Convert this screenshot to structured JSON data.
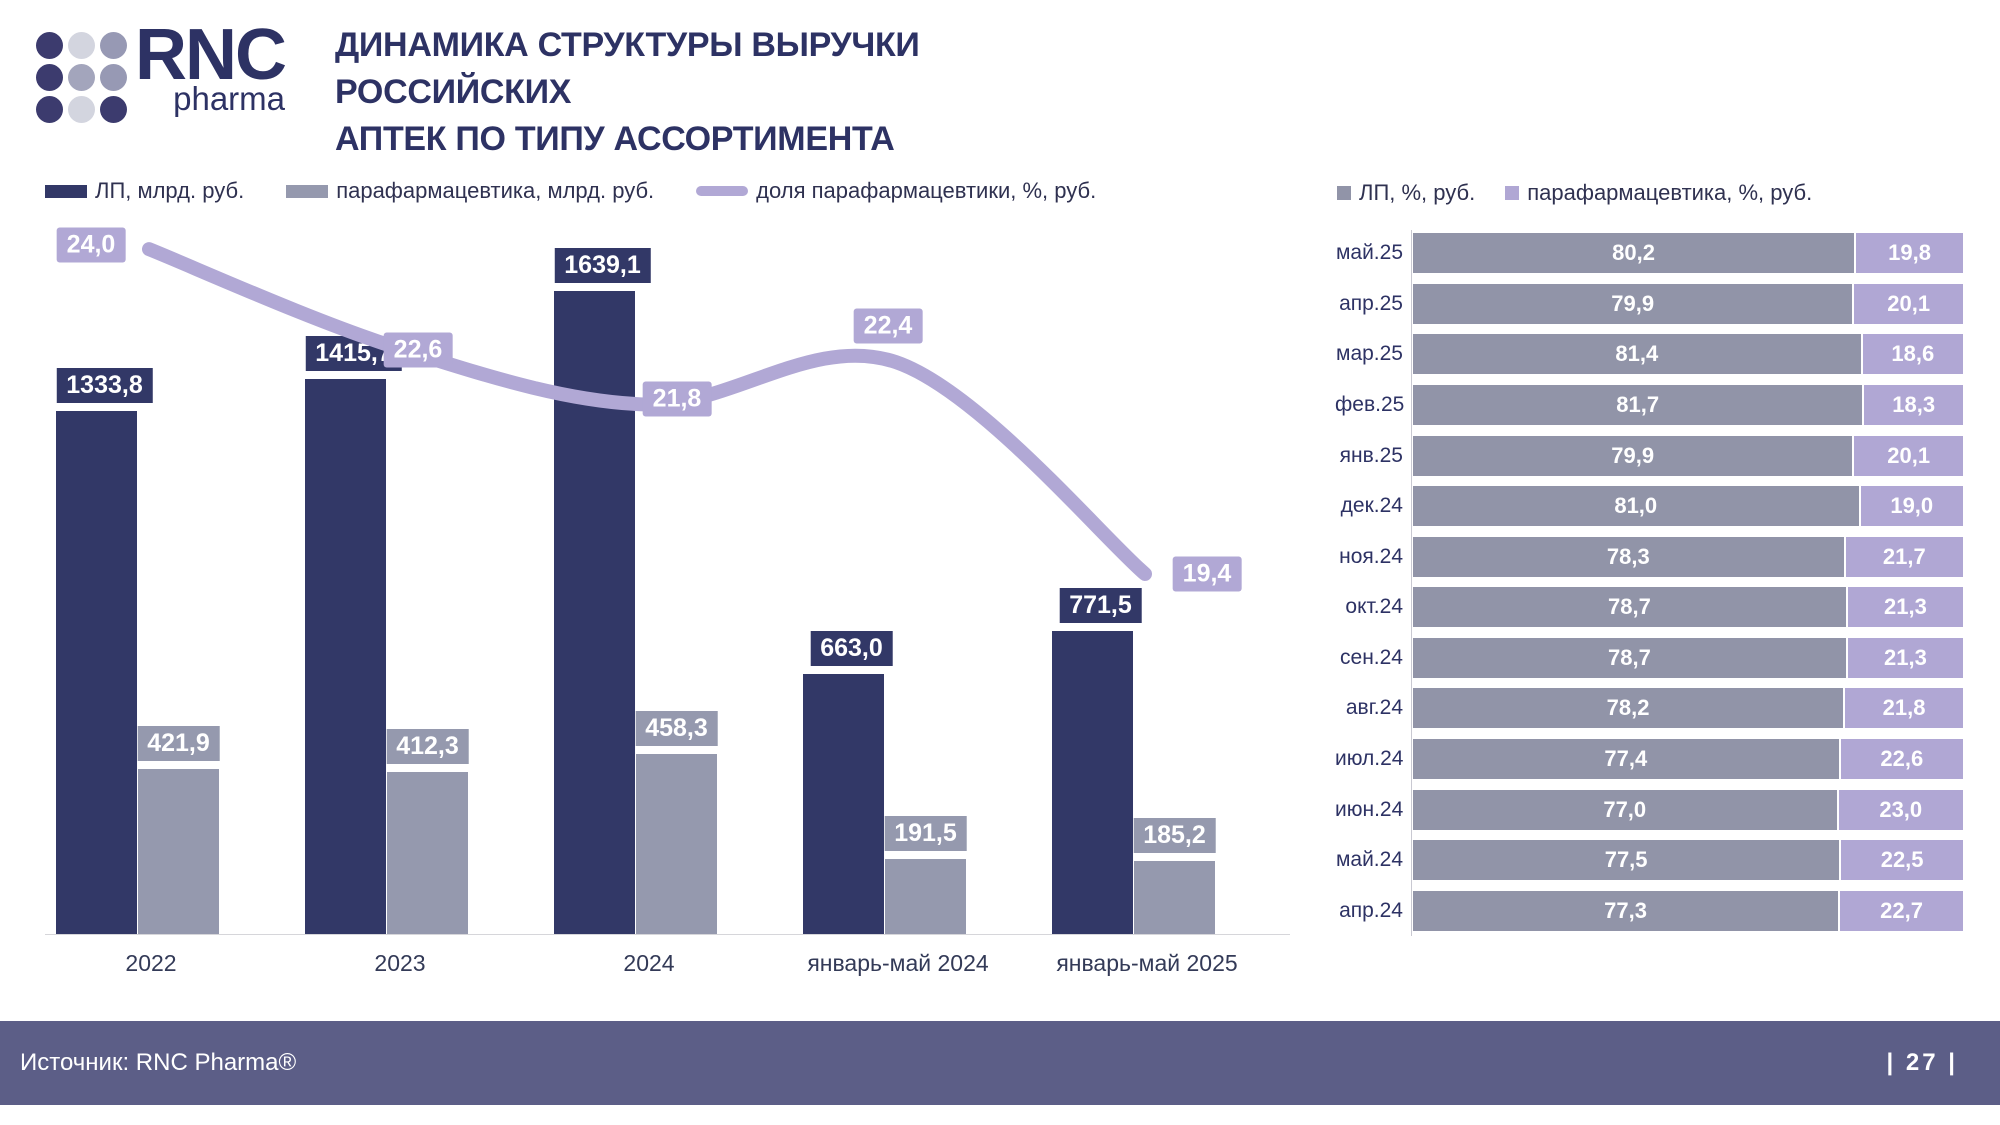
{
  "header": {
    "logo": {
      "text_main": "RNC",
      "text_sub": "pharma",
      "dot_colors": [
        "#3c3b6e",
        "#d3d5df",
        "#9799b4",
        "#3c3b6e",
        "#a3a5bc",
        "#9799b4",
        "#3c3b6e",
        "#d3d5df",
        "#3c3b6e"
      ]
    },
    "title_line1": "ДИНАМИКА СТРУКТУРЫ ВЫРУЧКИ РОССИЙСКИХ",
    "title_line2": "АПТЕК ПО ТИПУ АССОРТИМЕНТА"
  },
  "chart_data": [
    {
      "type": "bar",
      "subtype": "grouped-vertical-bars-with-percent-line",
      "categories": [
        "2022",
        "2023",
        "2024",
        "январь-май 2024",
        "январь-май 2025"
      ],
      "series": [
        {
          "name": "ЛП, млрд. руб.",
          "color": "#323867",
          "values": [
            1333.8,
            1415.7,
            1639.1,
            663.0,
            771.5
          ]
        },
        {
          "name": "парафармацевтика, млрд. руб.",
          "color": "#9599ae",
          "values": [
            421.9,
            412.3,
            458.3,
            191.5,
            185.2
          ]
        }
      ],
      "line_series": {
        "name": "доля парафармацевтики, %, руб.",
        "color": "#b1a8d5",
        "values": [
          24.0,
          22.6,
          21.8,
          22.4,
          19.4
        ]
      },
      "ylim": [
        0,
        1800
      ],
      "y2lim": [
        14.3,
        24.3
      ],
      "grid": false,
      "legend_position": "top-left",
      "decimal_separator": ","
    },
    {
      "type": "bar",
      "subtype": "horizontal-stacked-100-percent",
      "categories": [
        "май.25",
        "апр.25",
        "мар.25",
        "фев.25",
        "янв.25",
        "дек.24",
        "ноя.24",
        "окт.24",
        "сен.24",
        "авг.24",
        "июл.24",
        "июн.24",
        "май.24",
        "апр.24"
      ],
      "series": [
        {
          "name": "ЛП, %, руб.",
          "color": "#9194a8",
          "values": [
            80.2,
            79.9,
            81.4,
            81.7,
            79.9,
            81.0,
            78.3,
            78.7,
            78.7,
            78.2,
            77.4,
            77.0,
            77.5,
            77.3
          ]
        },
        {
          "name": "парафармацевтика, %, руб.",
          "color": "#b0a7d4",
          "values": [
            19.8,
            20.1,
            18.6,
            18.3,
            20.1,
            19.0,
            21.7,
            21.3,
            21.3,
            21.8,
            22.6,
            23.0,
            22.5,
            22.7
          ]
        }
      ],
      "xlim": [
        0,
        100
      ],
      "grid": false,
      "legend_position": "top",
      "decimal_separator": ","
    }
  ],
  "footer": {
    "source": "Источник: RNC Pharma®",
    "page": "| 27 |"
  }
}
